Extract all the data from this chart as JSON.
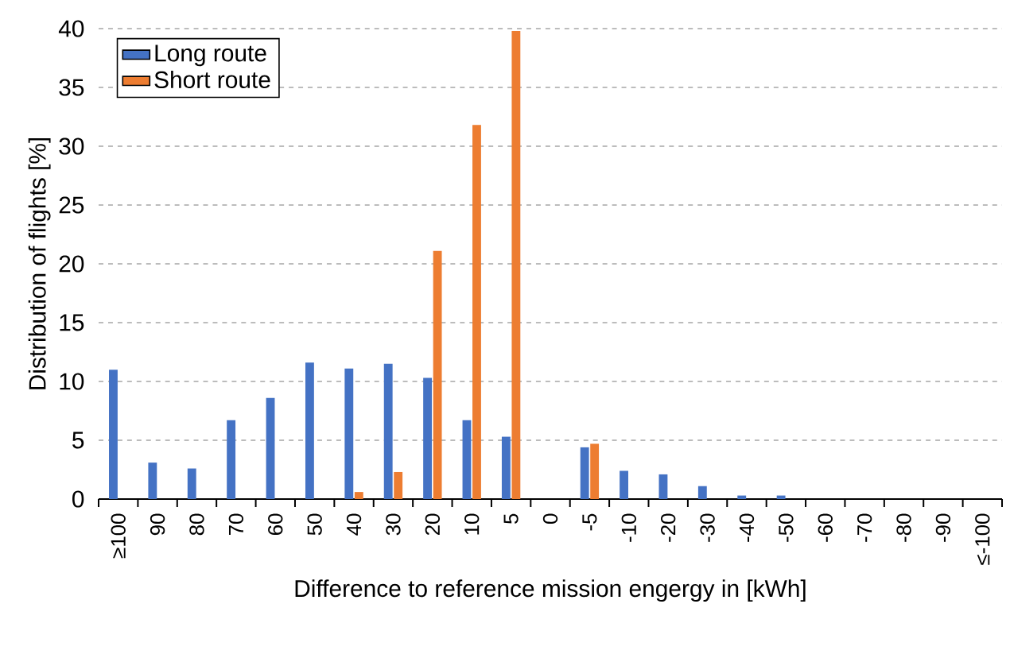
{
  "chart_data": {
    "type": "bar",
    "xlabel": "Difference to reference mission engergy in [kWh]",
    "ylabel": "Distribution of flights [%]",
    "categories": [
      "≥100",
      "90",
      "80",
      "70",
      "60",
      "50",
      "40",
      "30",
      "20",
      "10",
      "5",
      "0",
      "-5",
      "-10",
      "-20",
      "-30",
      "-40",
      "-50",
      "-60",
      "-70",
      "-80",
      "-90",
      "≤-100"
    ],
    "series": [
      {
        "name": "Long route",
        "color": "#4472c4",
        "values": [
          11.0,
          3.1,
          2.6,
          6.7,
          8.6,
          11.6,
          11.1,
          11.5,
          10.3,
          6.7,
          5.3,
          0,
          4.4,
          2.4,
          2.1,
          1.1,
          0.3,
          0.3,
          0,
          0,
          0,
          0,
          0
        ]
      },
      {
        "name": "Short route",
        "color": "#ed7d31",
        "values": [
          0,
          0,
          0,
          0,
          0,
          0,
          0.6,
          2.3,
          21.1,
          31.8,
          39.8,
          0,
          4.7,
          0,
          0,
          0,
          0,
          0,
          0,
          0,
          0,
          0,
          0
        ]
      }
    ],
    "ylim": [
      0,
      40
    ],
    "yticks": [
      0,
      5,
      10,
      15,
      20,
      25,
      30,
      35,
      40
    ],
    "grid": "y",
    "legend": "top left"
  }
}
